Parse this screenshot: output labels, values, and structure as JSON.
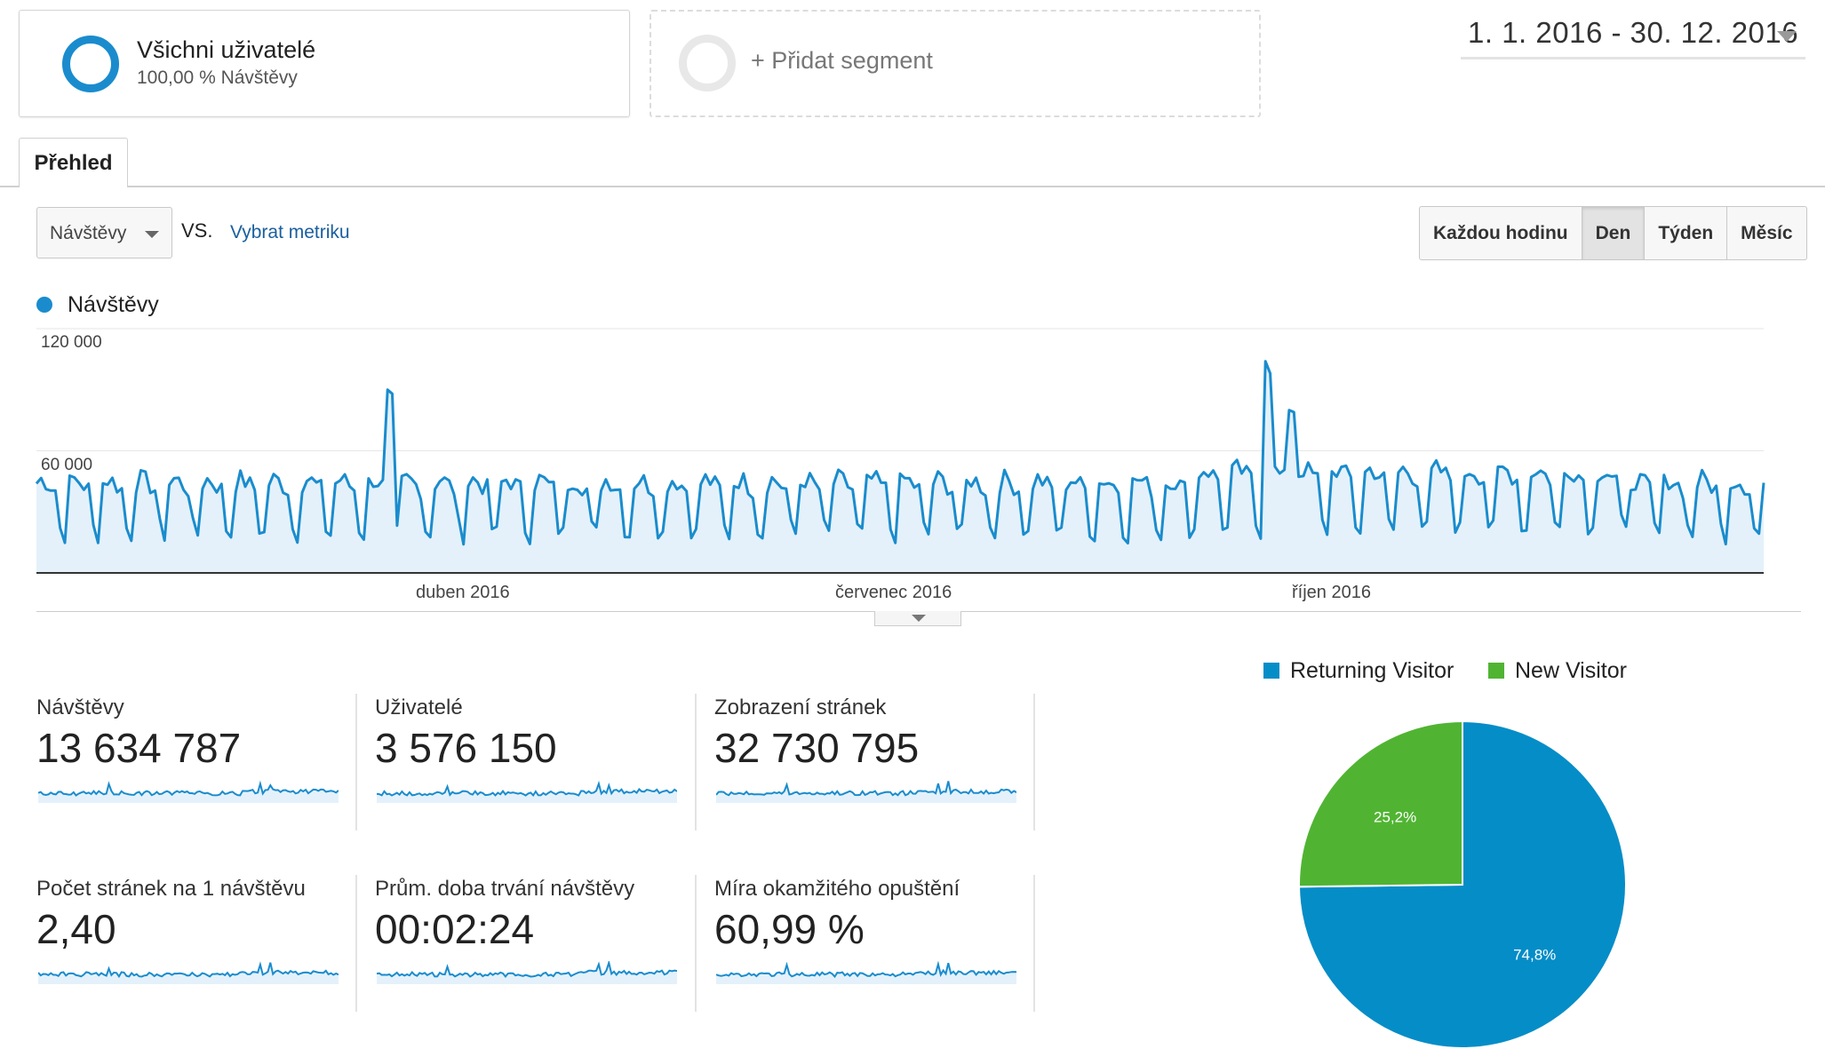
{
  "segments": {
    "all": {
      "title": "Všichni uživatelé",
      "subtitle": "100,00 % Návštěvy"
    },
    "add": {
      "label": "+ Přidat segment"
    }
  },
  "date_range": "1. 1. 2016 - 30. 12. 2016",
  "tabs": [
    {
      "label": "Přehled",
      "active": true
    }
  ],
  "metric_selector": {
    "value": "Návštěvy",
    "vs": "VS.",
    "pick_label": "Vybrat metriku"
  },
  "granularity": {
    "options": [
      "Každou hodinu",
      "Den",
      "Týden",
      "Měsíc"
    ],
    "active": "Den"
  },
  "colors": {
    "primary": "#1a8ccd",
    "fill": "#e4f1fa",
    "new_visitor": "#4cae33"
  },
  "chart_data": {
    "type": "area",
    "legend": "Návštěvy",
    "x_start": "2016-01-01",
    "x_end": "2016-12-30",
    "ylim": [
      0,
      120000
    ],
    "y_ticks": [
      {
        "value": 60000,
        "label": "60 000"
      },
      {
        "value": 120000,
        "label": "120 000"
      }
    ],
    "x_ticks": [
      {
        "date": "2016-04-01",
        "label": "duben 2016"
      },
      {
        "date": "2016-07-01",
        "label": "červenec 2016"
      },
      {
        "date": "2016-10-01",
        "label": "říjen 2016"
      }
    ],
    "base_weekly_pattern": [
      44000,
      46000,
      45000,
      43000,
      41000,
      22000,
      19000
    ],
    "spikes": [
      {
        "date": "2016-03-15",
        "value": 90000
      },
      {
        "date": "2016-03-16",
        "value": 88000
      },
      {
        "date": "2016-09-16",
        "value": 104000
      },
      {
        "date": "2016-09-17",
        "value": 98000
      },
      {
        "date": "2016-09-21",
        "value": 80000
      },
      {
        "date": "2016-09-22",
        "value": 79000
      }
    ]
  },
  "scorecards": [
    {
      "label": "Návštěvy",
      "value": "13 634 787"
    },
    {
      "label": "Uživatelé",
      "value": "3 576 150"
    },
    {
      "label": "Zobrazení stránek",
      "value": "32 730 795"
    },
    {
      "label": "Počet stránek na 1 návštěvu",
      "value": "2,40"
    },
    {
      "label": "Prům. doba trvání návštěvy",
      "value": "00:02:24"
    },
    {
      "label": "Míra okamžitého opuštění",
      "value": "60,99 %"
    }
  ],
  "pie_chart": {
    "type": "pie",
    "legend": [
      "Returning Visitor",
      "New Visitor"
    ],
    "slices": [
      {
        "name": "Returning Visitor",
        "value": 74.8,
        "label": "74,8%",
        "color": "#058dc7"
      },
      {
        "name": "New Visitor",
        "value": 25.2,
        "label": "25,2%",
        "color": "#50b432"
      }
    ]
  }
}
